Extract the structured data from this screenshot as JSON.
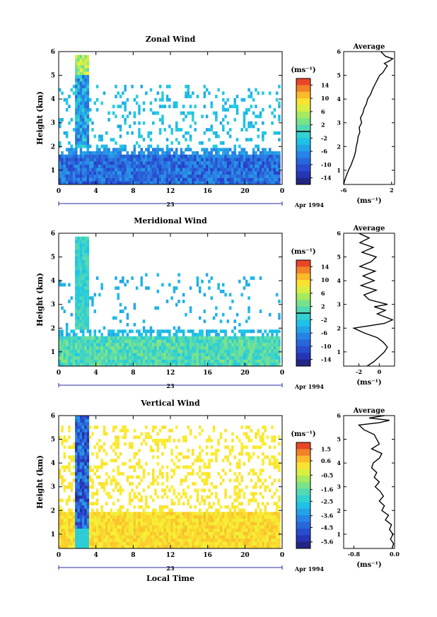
{
  "chart_data": [
    {
      "type": "heatmap",
      "title": "Zonal Wind",
      "ylabel": "Height (km)",
      "xticks": [
        "0",
        "4",
        "8",
        "12",
        "16",
        "20",
        "0"
      ],
      "xlim": [
        0,
        24
      ],
      "yticks": [
        "1",
        "2",
        "3",
        "4",
        "5",
        "6"
      ],
      "ylim": [
        0.4,
        6
      ],
      "date_label": "23",
      "date_unit": "Apr 1994",
      "colorbar": {
        "unit": "(ms⁻¹)",
        "ticks": [
          "14",
          "10",
          "6",
          "2",
          "-2",
          "-6",
          "-10",
          "-14"
        ],
        "range": [
          -16,
          16
        ],
        "marker_value": 0
      },
      "profile": {
        "title": "Average",
        "xlabel": "(ms⁻¹)",
        "xticks": [
          "-6",
          "2"
        ],
        "xlim": [
          -6,
          2.5
        ],
        "yticks": [
          "1",
          "2",
          "3",
          "4",
          "5",
          "6"
        ],
        "points": [
          [
            -6,
            0.4
          ],
          [
            -5.8,
            0.6
          ],
          [
            -5.5,
            0.8
          ],
          [
            -5.2,
            1.0
          ],
          [
            -4.8,
            1.2
          ],
          [
            -4.5,
            1.4
          ],
          [
            -4.2,
            1.6
          ],
          [
            -4.0,
            1.8
          ],
          [
            -3.9,
            2.0
          ],
          [
            -3.7,
            2.2
          ],
          [
            -3.6,
            2.4
          ],
          [
            -3.3,
            2.6
          ],
          [
            -3.4,
            2.8
          ],
          [
            -3.0,
            3.0
          ],
          [
            -3.2,
            3.2
          ],
          [
            -2.8,
            3.4
          ],
          [
            -2.6,
            3.6
          ],
          [
            -2.2,
            3.8
          ],
          [
            -2.0,
            4.0
          ],
          [
            -1.5,
            4.2
          ],
          [
            -1.2,
            4.4
          ],
          [
            -0.8,
            4.6
          ],
          [
            -0.4,
            4.8
          ],
          [
            0.0,
            5.0
          ],
          [
            0.5,
            5.1
          ],
          [
            1.0,
            5.3
          ],
          [
            1.3,
            5.4
          ],
          [
            0.8,
            5.5
          ],
          [
            1.6,
            5.6
          ],
          [
            2.2,
            5.7
          ],
          [
            1.0,
            5.8
          ],
          [
            0.2,
            6.0
          ]
        ]
      }
    },
    {
      "type": "heatmap",
      "title": "Meridional Wind",
      "ylabel": "Height (km)",
      "xticks": [
        "0",
        "4",
        "8",
        "12",
        "16",
        "20",
        "0"
      ],
      "xlim": [
        0,
        24
      ],
      "yticks": [
        "1",
        "2",
        "3",
        "4",
        "5",
        "6"
      ],
      "ylim": [
        0.4,
        6
      ],
      "date_label": "23",
      "date_unit": "Apr 1994",
      "colorbar": {
        "unit": "(ms⁻¹)",
        "ticks": [
          "14",
          "10",
          "6",
          "2",
          "-2",
          "-6",
          "-10",
          "-14"
        ],
        "range": [
          -16,
          16
        ],
        "marker_value": 0
      },
      "profile": {
        "title": "Average",
        "xlabel": "(ms⁻¹)",
        "xticks": [
          "-2",
          "0"
        ],
        "xlim": [
          -3.5,
          1.5
        ],
        "yticks": [
          "1",
          "2",
          "3",
          "4",
          "5",
          "6"
        ],
        "points": [
          [
            -1.2,
            0.4
          ],
          [
            -0.5,
            0.6
          ],
          [
            0.0,
            0.8
          ],
          [
            0.5,
            1.0
          ],
          [
            0.8,
            1.2
          ],
          [
            0.4,
            1.4
          ],
          [
            -0.2,
            1.6
          ],
          [
            -1.5,
            1.8
          ],
          [
            -2.5,
            2.0
          ],
          [
            -1.0,
            2.1
          ],
          [
            0.5,
            2.2
          ],
          [
            1.3,
            2.35
          ],
          [
            0.4,
            2.5
          ],
          [
            -0.2,
            2.6
          ],
          [
            0.6,
            2.75
          ],
          [
            -0.5,
            2.9
          ],
          [
            0.8,
            3.0
          ],
          [
            -1.0,
            3.2
          ],
          [
            -1.5,
            3.4
          ],
          [
            -0.3,
            3.6
          ],
          [
            -1.8,
            3.8
          ],
          [
            -0.5,
            4.0
          ],
          [
            -1.6,
            4.2
          ],
          [
            -0.4,
            4.4
          ],
          [
            -1.9,
            4.6
          ],
          [
            -0.8,
            4.8
          ],
          [
            -0.3,
            5.0
          ],
          [
            -1.7,
            5.2
          ],
          [
            -0.6,
            5.4
          ],
          [
            -1.9,
            5.6
          ],
          [
            -1.0,
            5.8
          ],
          [
            -2.0,
            6.0
          ]
        ]
      }
    },
    {
      "type": "heatmap",
      "title": "Vertical Wind",
      "ylabel": "Height (km)",
      "xlabel": "Local Time",
      "xticks": [
        "0",
        "4",
        "8",
        "12",
        "16",
        "20",
        "0"
      ],
      "xlim": [
        0,
        24
      ],
      "yticks": [
        "1",
        "2",
        "3",
        "4",
        "5",
        "6"
      ],
      "ylim": [
        0.4,
        6
      ],
      "date_label": "23",
      "date_unit": "Apr 1994",
      "colorbar": {
        "unit": "(ms⁻¹)",
        "ticks": [
          "1.5",
          "0.6",
          "-0.5",
          "-1.6",
          "-2.5",
          "-3.6",
          "-4.5",
          "-5.6"
        ],
        "range": [
          -6.1,
          2.0
        ]
      },
      "profile": {
        "title": "Average",
        "xlabel": "(ms⁻¹)",
        "xticks": [
          "-0.8",
          "0.0"
        ],
        "xlim": [
          -1.0,
          0.0
        ],
        "yticks": [
          "1",
          "2",
          "3",
          "4",
          "5",
          "6"
        ],
        "points": [
          [
            -0.05,
            0.4
          ],
          [
            -0.02,
            0.6
          ],
          [
            -0.08,
            0.8
          ],
          [
            -0.03,
            1.0
          ],
          [
            -0.1,
            1.2
          ],
          [
            -0.06,
            1.4
          ],
          [
            -0.18,
            1.6
          ],
          [
            -0.12,
            1.8
          ],
          [
            -0.25,
            2.0
          ],
          [
            -0.2,
            2.2
          ],
          [
            -0.3,
            2.4
          ],
          [
            -0.22,
            2.6
          ],
          [
            -0.28,
            2.8
          ],
          [
            -0.38,
            3.0
          ],
          [
            -0.3,
            3.2
          ],
          [
            -0.4,
            3.4
          ],
          [
            -0.35,
            3.6
          ],
          [
            -0.45,
            3.8
          ],
          [
            -0.42,
            4.0
          ],
          [
            -0.3,
            4.2
          ],
          [
            -0.25,
            4.4
          ],
          [
            -0.45,
            4.6
          ],
          [
            -0.3,
            4.8
          ],
          [
            -0.35,
            5.0
          ],
          [
            -0.4,
            5.2
          ],
          [
            -0.6,
            5.4
          ],
          [
            -0.7,
            5.6
          ],
          [
            -0.3,
            5.7
          ],
          [
            -0.1,
            5.8
          ],
          [
            -0.5,
            5.9
          ],
          [
            -0.2,
            6.0
          ]
        ]
      }
    }
  ]
}
